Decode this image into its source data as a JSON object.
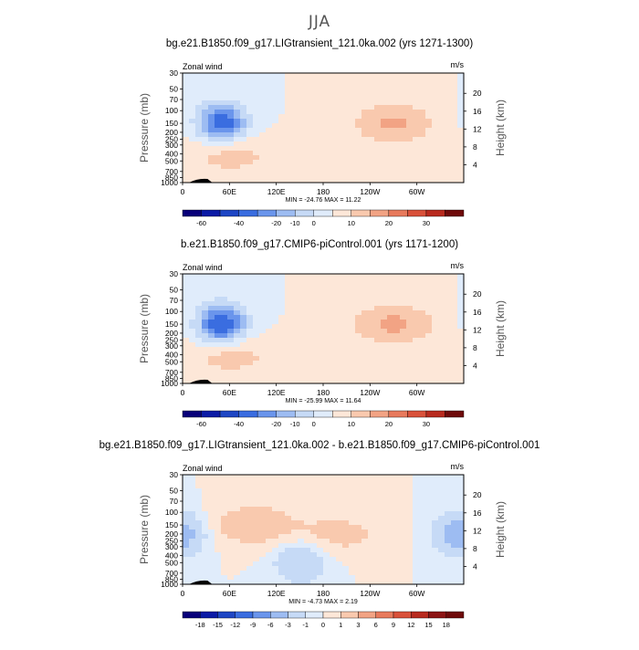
{
  "main_title": "JJA",
  "chart_data": [
    {
      "type": "heatmap",
      "title": "bg.e21.B1850.f09_g17.LIGtransient_121.0ka.002 (yrs 1271-1300)",
      "left_string": "Zonal wind",
      "units": "m/s",
      "ylabel": "Pressure (mb)",
      "ylabel_right": "Height (km)",
      "x_ticks": [
        "0",
        "60E",
        "120E",
        "180",
        "120W",
        "60W"
      ],
      "y_ticks": [
        "30",
        "50",
        "70",
        "100",
        "150",
        "200",
        "250",
        "300",
        "400",
        "500",
        "700",
        "850",
        "1000"
      ],
      "y_right_ticks": [
        "20",
        "16",
        "12",
        "8",
        "4"
      ],
      "min": -24.76,
      "max": 11.22,
      "minmax_label": "MIN = -24.76   MAX =  11.22",
      "colorbar_labels": [
        "-60",
        "-40",
        "-20",
        "-10",
        "0",
        "10",
        "20",
        "30"
      ],
      "features": [
        {
          "kind": "neg",
          "lon": 50,
          "p": 150,
          "peak": -24.76
        },
        {
          "kind": "pos",
          "lon": 270,
          "p": 150,
          "peak": 11.22
        },
        {
          "kind": "pos",
          "lon": 60,
          "p": 400,
          "peak": 8
        }
      ]
    },
    {
      "type": "heatmap",
      "title": "b.e21.B1850.f09_g17.CMIP6-piControl.001 (yrs 1171-1200)",
      "left_string": "Zonal wind",
      "units": "m/s",
      "ylabel": "Pressure (mb)",
      "ylabel_right": "Height (km)",
      "x_ticks": [
        "0",
        "60E",
        "120E",
        "180",
        "120W",
        "60W"
      ],
      "y_ticks": [
        "30",
        "50",
        "70",
        "100",
        "150",
        "200",
        "250",
        "300",
        "400",
        "500",
        "700",
        "850",
        "1000"
      ],
      "y_right_ticks": [
        "20",
        "16",
        "12",
        "8",
        "4"
      ],
      "min": -25.99,
      "max": 11.64,
      "minmax_label": "MIN = -25.99   MAX =  11.64",
      "colorbar_labels": [
        "-60",
        "-40",
        "-20",
        "-10",
        "0",
        "10",
        "20",
        "30"
      ],
      "features": [
        {
          "kind": "neg",
          "lon": 50,
          "p": 150,
          "peak": -25.99
        },
        {
          "kind": "pos",
          "lon": 270,
          "p": 150,
          "peak": 11.64
        },
        {
          "kind": "pos",
          "lon": 60,
          "p": 400,
          "peak": 8
        }
      ]
    },
    {
      "type": "heatmap",
      "title": "bg.e21.B1850.f09_g17.LIGtransient_121.0ka.002 - b.e21.B1850.f09_g17.CMIP6-piControl.001",
      "left_string": "Zonal wind",
      "units": "m/s",
      "ylabel": "Pressure (mb)",
      "ylabel_right": "Height (km)",
      "x_ticks": [
        "0",
        "60E",
        "120E",
        "180",
        "120W",
        "60W"
      ],
      "y_ticks": [
        "30",
        "50",
        "70",
        "100",
        "150",
        "200",
        "250",
        "300",
        "400",
        "500",
        "700",
        "850",
        "1000"
      ],
      "y_right_ticks": [
        "20",
        "16",
        "12",
        "8",
        "4"
      ],
      "min": -4.73,
      "max": 2.19,
      "minmax_label": "MIN = -4.73   MAX =   2.19",
      "colorbar_labels": [
        "-18",
        "-15",
        "-12",
        "-9",
        "-6",
        "-3",
        "-1",
        "0",
        "1",
        "3",
        "6",
        "9",
        "12",
        "15",
        "18"
      ],
      "features": [
        {
          "kind": "pos",
          "lon": 90,
          "p": 150,
          "peak": 2.19
        },
        {
          "kind": "neg",
          "lon": 355,
          "p": 200,
          "peak": -4.73
        },
        {
          "kind": "pos",
          "lon": 200,
          "p": 200,
          "peak": 1.5
        },
        {
          "kind": "neg",
          "lon": 150,
          "p": 500,
          "peak": -3
        }
      ]
    }
  ],
  "colors": {
    "background": "#ffffff",
    "colorbar_wind": [
      "#08007a",
      "#0b1ba6",
      "#1e46c4",
      "#3a6de0",
      "#6a95ec",
      "#9dbcf2",
      "#c6daf6",
      "#e0ecfb",
      "#fde7d8",
      "#f9c9ae",
      "#f2a384",
      "#e87a5c",
      "#d9513a",
      "#b82a1e",
      "#6f0a0a"
    ],
    "colorbar_diff": [
      "#08007a",
      "#0b1ba6",
      "#1e46c4",
      "#3a6de0",
      "#6a95ec",
      "#9dbcf2",
      "#c6daf6",
      "#e0ecfb",
      "#fde7d8",
      "#f9c9ae",
      "#f2a384",
      "#e87a5c",
      "#d9513a",
      "#b82a1e",
      "#8c1414",
      "#6f0a0a"
    ]
  }
}
